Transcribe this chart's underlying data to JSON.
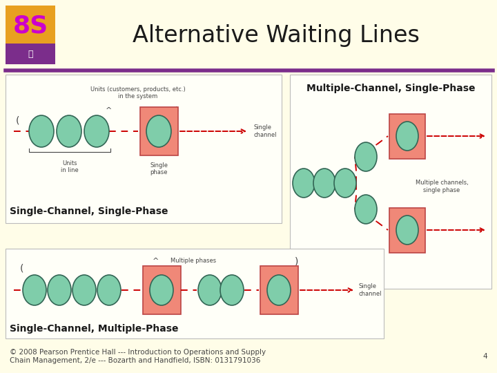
{
  "bg_color": "#FFFDE8",
  "title": "Alternative Waiting Lines",
  "title_fontsize": 24,
  "title_color": "#1a1a1a",
  "badge_bg": "#E8A020",
  "badge_text": "8S",
  "badge_text_color": "#CC00CC",
  "badge_sub_bg": "#7B2D8B",
  "divider_color": "#7B2D8B",
  "label_sc_sp": "Single-Channel, Single-Phase",
  "label_mc_sp": "Multiple-Channel, Single-Phase",
  "label_sc_mp": "Single-Channel, Multiple-Phase",
  "label_fontsize": 10,
  "box_color": "#F08878",
  "box_edge": "#BB4444",
  "circle_face": "#7FCDAA",
  "circle_edge": "#336655",
  "arrow_color": "#CC0000",
  "panel_bg": "#FFFFF8",
  "panel_edge": "#BBBBBB",
  "footer_text1": "© 2008 Pearson Prentice Hall --- Introduction to Operations and Supply",
  "footer_text2": "Chain Management, 2/e --- Bozarth and Handfield, ISBN: 0131791036",
  "footer_page": "4",
  "footer_fontsize": 7.5
}
